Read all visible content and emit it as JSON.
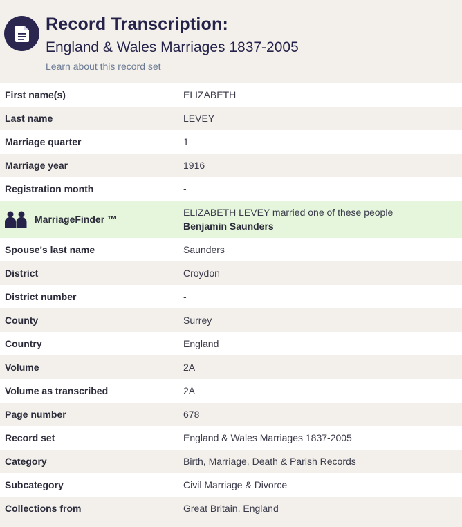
{
  "header": {
    "icon": "document-icon",
    "title": "Record Transcription:",
    "subtitle": "England & Wales Marriages 1837-2005",
    "learn_link": "Learn about this record set"
  },
  "colors": {
    "accent_dark": "#2b2650",
    "row_alt": "#f3f0eb",
    "marriagefinder_bg": "#e5f6dc"
  },
  "rows_before": [
    {
      "label": "First name(s)",
      "value": "ELIZABETH"
    },
    {
      "label": "Last name",
      "value": "LEVEY"
    },
    {
      "label": "Marriage quarter",
      "value": "1"
    },
    {
      "label": "Marriage year",
      "value": "1916"
    },
    {
      "label": "Registration month",
      "value": "-"
    }
  ],
  "marriage_finder": {
    "icon": "couple-icon",
    "label": "MarriageFinder ™",
    "text": "ELIZABETH LEVEY married one of these people",
    "spouse": "Benjamin Saunders"
  },
  "rows_after": [
    {
      "label": "Spouse's last name",
      "value": "Saunders"
    },
    {
      "label": "District",
      "value": "Croydon"
    },
    {
      "label": "District number",
      "value": "-"
    },
    {
      "label": "County",
      "value": "Surrey"
    },
    {
      "label": "Country",
      "value": "England"
    },
    {
      "label": "Volume",
      "value": "2A"
    },
    {
      "label": "Volume as transcribed",
      "value": "2A"
    },
    {
      "label": "Page number",
      "value": "678"
    },
    {
      "label": "Record set",
      "value": "England & Wales Marriages 1837-2005"
    },
    {
      "label": "Category",
      "value": "Birth, Marriage, Death & Parish Records"
    },
    {
      "label": "Subcategory",
      "value": "Civil Marriage & Divorce"
    },
    {
      "label": "Collections from",
      "value": "Great Britain, England"
    }
  ]
}
